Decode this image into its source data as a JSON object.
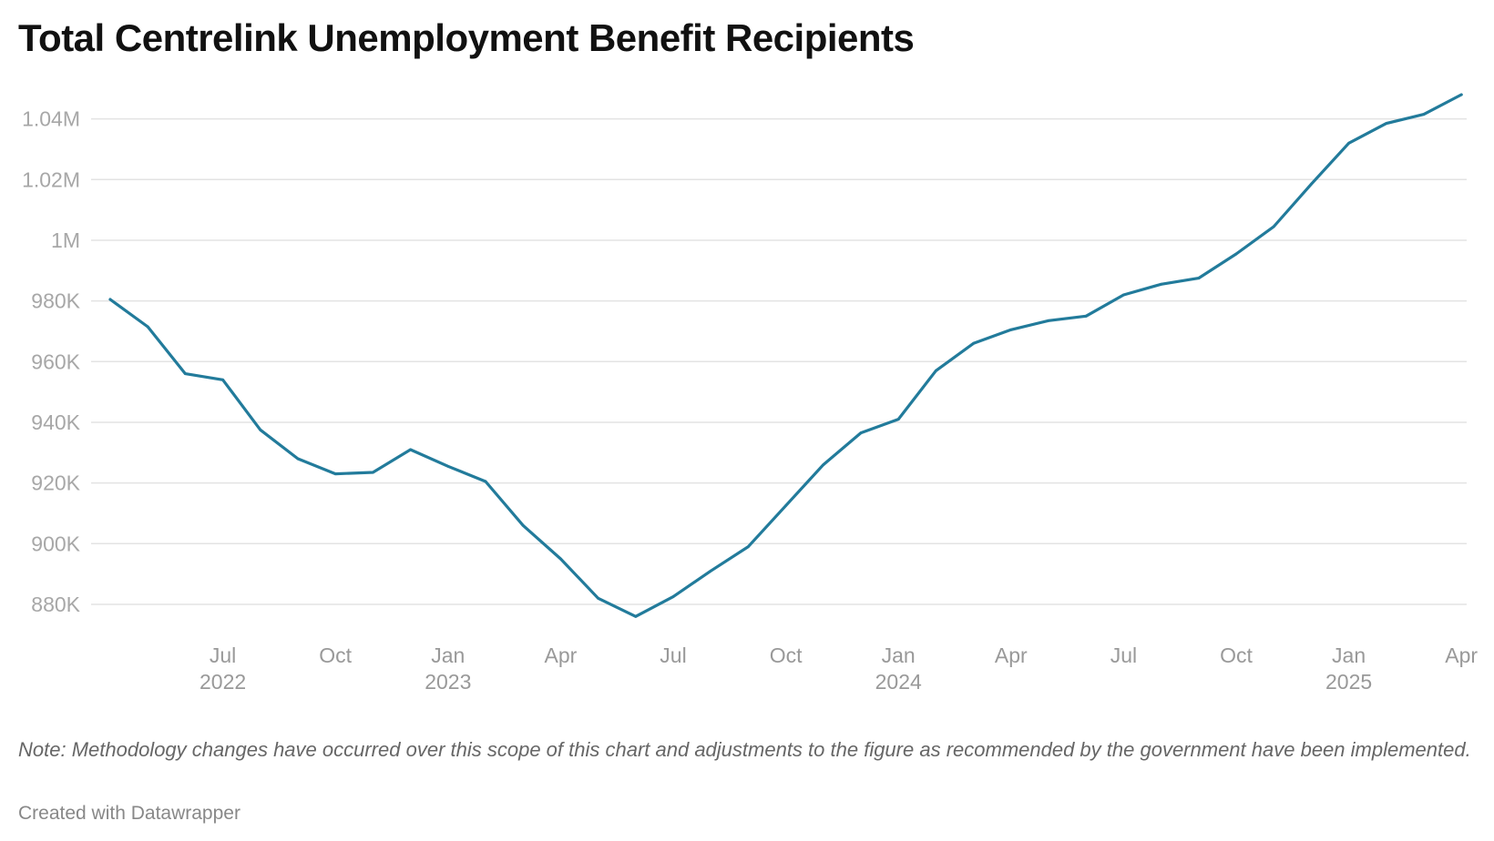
{
  "title": "Total Centrelink Unemployment Benefit Recipients",
  "note": "Note: Methodology changes have occurred over this scope of this chart and adjustments to the figure as recommended by the government have been implemented.",
  "credit": "Created with Datawrapper",
  "colors": {
    "line": "#227b9b",
    "grid": "#e3e3e3",
    "tick": "#a7a7a7",
    "axis_label": "#999999"
  },
  "chart_data": {
    "type": "line",
    "title": "Total Centrelink Unemployment Benefit Recipients",
    "xlabel": "",
    "ylabel": "",
    "ylim": [
      870000,
      1050000
    ],
    "y_ticks": [
      {
        "value": 880000,
        "label": "880K"
      },
      {
        "value": 900000,
        "label": "900K"
      },
      {
        "value": 920000,
        "label": "920K"
      },
      {
        "value": 940000,
        "label": "940K"
      },
      {
        "value": 960000,
        "label": "960K"
      },
      {
        "value": 980000,
        "label": "980K"
      },
      {
        "value": 1000000,
        "label": "1M"
      },
      {
        "value": 1020000,
        "label": "1.02M"
      },
      {
        "value": 1040000,
        "label": "1.04M"
      }
    ],
    "x_ticks": [
      {
        "date": "2022-07",
        "label": "Jul",
        "year": "2022"
      },
      {
        "date": "2022-10",
        "label": "Oct",
        "year": ""
      },
      {
        "date": "2023-01",
        "label": "Jan",
        "year": "2023"
      },
      {
        "date": "2023-04",
        "label": "Apr",
        "year": ""
      },
      {
        "date": "2023-07",
        "label": "Jul",
        "year": ""
      },
      {
        "date": "2023-10",
        "label": "Oct",
        "year": ""
      },
      {
        "date": "2024-01",
        "label": "Jan",
        "year": "2024"
      },
      {
        "date": "2024-04",
        "label": "Apr",
        "year": ""
      },
      {
        "date": "2024-07",
        "label": "Jul",
        "year": ""
      },
      {
        "date": "2024-10",
        "label": "Oct",
        "year": ""
      },
      {
        "date": "2025-01",
        "label": "Jan",
        "year": "2025"
      },
      {
        "date": "2025-04",
        "label": "Apr",
        "year": ""
      }
    ],
    "grid": true,
    "legend": "none",
    "series": [
      {
        "values": [
          {
            "x": "2022-04",
            "y": 980500
          },
          {
            "x": "2022-05",
            "y": 971500
          },
          {
            "x": "2022-06",
            "y": 956000
          },
          {
            "x": "2022-07",
            "y": 954000
          },
          {
            "x": "2022-08",
            "y": 937500
          },
          {
            "x": "2022-09",
            "y": 928000
          },
          {
            "x": "2022-10",
            "y": 923000
          },
          {
            "x": "2022-11",
            "y": 923500
          },
          {
            "x": "2022-12",
            "y": 931000
          },
          {
            "x": "2023-01",
            "y": 925500
          },
          {
            "x": "2023-02",
            "y": 920500
          },
          {
            "x": "2023-03",
            "y": 906000
          },
          {
            "x": "2023-04",
            "y": 895000
          },
          {
            "x": "2023-05",
            "y": 882000
          },
          {
            "x": "2023-06",
            "y": 876000
          },
          {
            "x": "2023-07",
            "y": 882500
          },
          {
            "x": "2023-08",
            "y": 891000
          },
          {
            "x": "2023-09",
            "y": 899000
          },
          {
            "x": "2023-10",
            "y": 912500
          },
          {
            "x": "2023-11",
            "y": 926000
          },
          {
            "x": "2023-12",
            "y": 936500
          },
          {
            "x": "2024-01",
            "y": 941000
          },
          {
            "x": "2024-02",
            "y": 957000
          },
          {
            "x": "2024-03",
            "y": 966000
          },
          {
            "x": "2024-04",
            "y": 970500
          },
          {
            "x": "2024-05",
            "y": 973500
          },
          {
            "x": "2024-06",
            "y": 975000
          },
          {
            "x": "2024-07",
            "y": 982000
          },
          {
            "x": "2024-08",
            "y": 985500
          },
          {
            "x": "2024-09",
            "y": 987500
          },
          {
            "x": "2024-10",
            "y": 995500
          },
          {
            "x": "2024-11",
            "y": 1004500
          },
          {
            "x": "2024-12",
            "y": 1018500
          },
          {
            "x": "2025-01",
            "y": 1032000
          },
          {
            "x": "2025-02",
            "y": 1038500
          },
          {
            "x": "2025-03",
            "y": 1041500
          },
          {
            "x": "2025-04",
            "y": 1048000
          }
        ]
      }
    ]
  }
}
